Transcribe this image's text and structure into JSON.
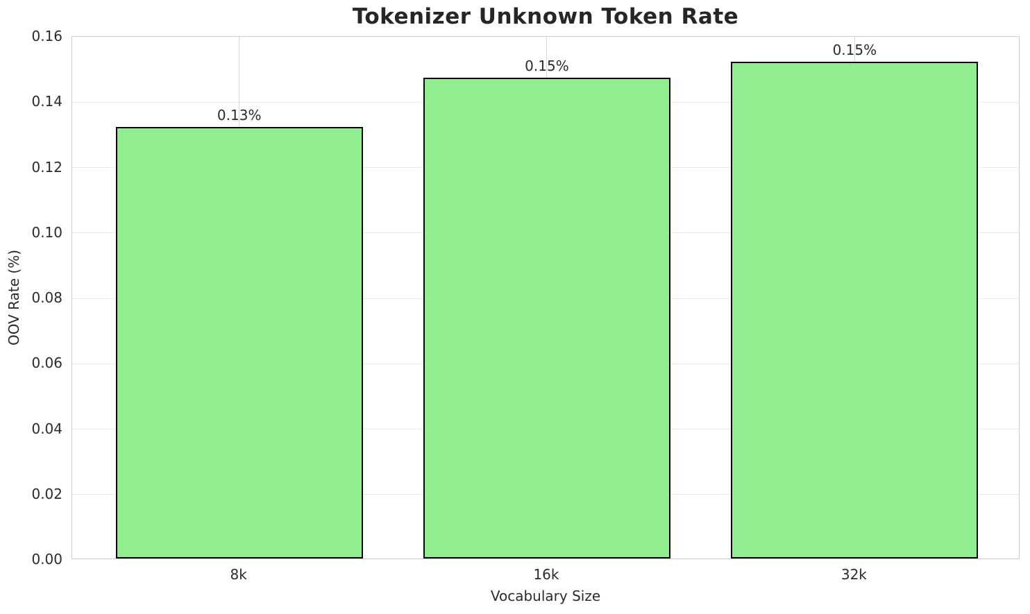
{
  "chart_data": {
    "type": "bar",
    "title": "Tokenizer Unknown Token Rate",
    "xlabel": "Vocabulary Size",
    "ylabel": "OOV Rate (%)",
    "categories": [
      "8k",
      "16k",
      "32k"
    ],
    "values": [
      0.132,
      0.147,
      0.152
    ],
    "bar_labels": [
      "0.13%",
      "0.15%",
      "0.15%"
    ],
    "ylim": [
      0,
      0.16
    ],
    "yticks": [
      0,
      0.02,
      0.04,
      0.06,
      0.08,
      0.1,
      0.12,
      0.14,
      0.16
    ],
    "ytick_labels": [
      "0.00",
      "0.02",
      "0.04",
      "0.06",
      "0.08",
      "0.10",
      "0.12",
      "0.14",
      "0.16"
    ],
    "grid": true,
    "legend_position": "none",
    "colors": {
      "bar_fill": "#90EE90",
      "bar_edge": "#000000",
      "text": "#2b2b2b",
      "grid": "#ebebeb",
      "spine": "#cccccc"
    }
  }
}
